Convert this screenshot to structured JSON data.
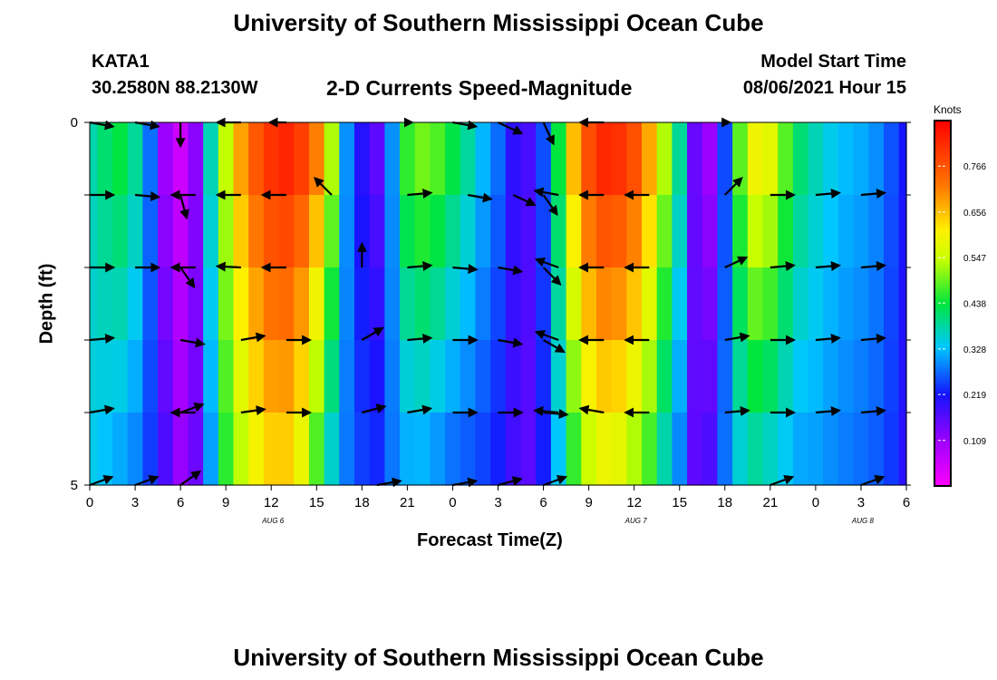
{
  "page": {
    "title": "University of Southern Mississippi Ocean Cube",
    "footer_title": "University of Southern Mississippi Ocean Cube"
  },
  "header": {
    "station": "KATA1",
    "coords": "30.2580N  88.2130W",
    "plot_title": "2-D Currents Speed-Magnitude",
    "model_label": "Model Start Time",
    "model_time": "08/06/2021 Hour 15"
  },
  "chart_data": {
    "type": "heatmap",
    "title": "2-D Currents Speed-Magnitude",
    "xlabel": "Forecast Time(Z)",
    "ylabel": "Depth (ft)",
    "x_tick_labels": [
      "0",
      "3",
      "6",
      "9",
      "12",
      "15",
      "18",
      "21",
      "0",
      "3",
      "6",
      "9",
      "12",
      "15",
      "18",
      "21",
      "0",
      "3",
      "6"
    ],
    "date_labels": [
      {
        "text": "AUG  6",
        "hour": 12
      },
      {
        "text": "AUG  7",
        "hour": 36
      },
      {
        "text": "AUG  8",
        "hour": 51
      }
    ],
    "y_tick_labels": [
      "0",
      "5"
    ],
    "ylim": [
      0,
      5
    ],
    "x_range_hours": [
      0,
      54
    ],
    "depth_levels": [
      0,
      1,
      2,
      3,
      4,
      5
    ],
    "colorbar": {
      "unit": "Knots",
      "range": [
        0.0,
        0.875
      ],
      "tick_labels": [
        "0.766",
        "0.656",
        "0.547",
        "0.438",
        "0.328",
        "0.219",
        "0.109"
      ],
      "tick_values": [
        0.766,
        0.656,
        0.547,
        0.438,
        0.328,
        0.219,
        0.109
      ]
    },
    "speed_profile": {
      "hours": [
        0,
        1,
        2,
        3,
        4,
        5,
        6,
        7,
        8,
        9,
        10,
        11,
        12,
        13,
        14,
        15,
        16,
        17,
        18,
        19,
        20,
        21,
        22,
        23,
        24,
        25,
        26,
        27,
        28,
        29,
        30,
        31,
        32,
        33,
        34,
        35,
        36,
        37,
        38,
        39,
        40,
        41,
        42,
        43,
        44,
        45,
        46,
        47,
        48,
        49,
        50,
        51,
        52,
        53,
        54
      ],
      "surface": [
        0.38,
        0.42,
        0.45,
        0.4,
        0.28,
        0.1,
        0.05,
        0.12,
        0.38,
        0.55,
        0.7,
        0.78,
        0.83,
        0.85,
        0.82,
        0.74,
        0.55,
        0.3,
        0.2,
        0.15,
        0.3,
        0.48,
        0.52,
        0.5,
        0.45,
        0.4,
        0.33,
        0.28,
        0.2,
        0.18,
        0.26,
        0.45,
        0.68,
        0.8,
        0.85,
        0.84,
        0.8,
        0.7,
        0.55,
        0.4,
        0.15,
        0.1,
        0.25,
        0.5,
        0.62,
        0.6,
        0.5,
        0.42,
        0.38,
        0.35,
        0.33,
        0.32,
        0.3,
        0.26,
        0.22
      ],
      "bottom": [
        0.34,
        0.32,
        0.3,
        0.28,
        0.24,
        0.18,
        0.12,
        0.15,
        0.3,
        0.45,
        0.52,
        0.58,
        0.62,
        0.62,
        0.56,
        0.45,
        0.34,
        0.28,
        0.25,
        0.24,
        0.28,
        0.3,
        0.3,
        0.28,
        0.26,
        0.25,
        0.24,
        0.22,
        0.18,
        0.16,
        0.22,
        0.32,
        0.44,
        0.52,
        0.56,
        0.55,
        0.5,
        0.45,
        0.36,
        0.28,
        0.16,
        0.18,
        0.28,
        0.34,
        0.36,
        0.34,
        0.32,
        0.3,
        0.3,
        0.29,
        0.28,
        0.27,
        0.26,
        0.24,
        0.2
      ]
    },
    "vectors": [
      {
        "hour": 0,
        "depth": 0,
        "dir": -10,
        "len": 1.0
      },
      {
        "hour": 3,
        "depth": 0,
        "dir": -10,
        "len": 1.0
      },
      {
        "hour": 6,
        "depth": 0,
        "dir": -90,
        "len": 1.0
      },
      {
        "hour": 10,
        "depth": 0,
        "dir": 180,
        "len": 1.0
      },
      {
        "hour": 13,
        "depth": 0,
        "dir": 180,
        "len": 0.7
      },
      {
        "hour": 21,
        "depth": 0,
        "dir": 0,
        "len": 0.2
      },
      {
        "hour": 24,
        "depth": 0,
        "dir": -10,
        "len": 1.0
      },
      {
        "hour": 27,
        "depth": 0,
        "dir": -25,
        "len": 1.1
      },
      {
        "hour": 30,
        "depth": 0,
        "dir": -65,
        "len": 1.0
      },
      {
        "hour": 34,
        "depth": 0,
        "dir": 180,
        "len": 1.0
      },
      {
        "hour": 42,
        "depth": 0,
        "dir": 0,
        "len": 0.2
      },
      {
        "hour": 0,
        "depth": 1,
        "dir": 0,
        "len": 1.0
      },
      {
        "hour": 3,
        "depth": 1,
        "dir": -5,
        "len": 1.0
      },
      {
        "hour": 6,
        "depth": 1,
        "dir": -75,
        "len": 1.0
      },
      {
        "hour": 7,
        "depth": 1,
        "dir": 180,
        "len": 1.0
      },
      {
        "hour": 10,
        "depth": 1,
        "dir": 180,
        "len": 1.0
      },
      {
        "hour": 13,
        "depth": 1,
        "dir": 180,
        "len": 1.0
      },
      {
        "hour": 16,
        "depth": 1,
        "dir": 135,
        "len": 1.0
      },
      {
        "hour": 21,
        "depth": 1,
        "dir": 5,
        "len": 1.0
      },
      {
        "hour": 25,
        "depth": 1,
        "dir": -10,
        "len": 1.0
      },
      {
        "hour": 28,
        "depth": 1,
        "dir": -25,
        "len": 1.0
      },
      {
        "hour": 30,
        "depth": 1,
        "dir": -55,
        "len": 1.0
      },
      {
        "hour": 31,
        "depth": 1,
        "dir": 170,
        "len": 1.0
      },
      {
        "hour": 34,
        "depth": 1,
        "dir": 180,
        "len": 1.0
      },
      {
        "hour": 37,
        "depth": 1,
        "dir": 180,
        "len": 1.0
      },
      {
        "hour": 42,
        "depth": 1,
        "dir": 45,
        "len": 1.0
      },
      {
        "hour": 45,
        "depth": 1,
        "dir": 0,
        "len": 1.0
      },
      {
        "hour": 48,
        "depth": 1,
        "dir": 5,
        "len": 1.0
      },
      {
        "hour": 51,
        "depth": 1,
        "dir": 5,
        "len": 1.0
      },
      {
        "hour": 0,
        "depth": 2,
        "dir": 0,
        "len": 1.0
      },
      {
        "hour": 3,
        "depth": 2,
        "dir": 0,
        "len": 1.0
      },
      {
        "hour": 6,
        "depth": 2,
        "dir": -55,
        "len": 1.0
      },
      {
        "hour": 7,
        "depth": 2,
        "dir": 180,
        "len": 1.0
      },
      {
        "hour": 10,
        "depth": 2,
        "dir": 177,
        "len": 1.0
      },
      {
        "hour": 13,
        "depth": 2,
        "dir": 180,
        "len": 1.0
      },
      {
        "hour": 18,
        "depth": 2,
        "dir": 90,
        "len": 1.0
      },
      {
        "hour": 21,
        "depth": 2,
        "dir": 5,
        "len": 1.0
      },
      {
        "hour": 24,
        "depth": 2,
        "dir": -5,
        "len": 1.0
      },
      {
        "hour": 27,
        "depth": 2,
        "dir": -10,
        "len": 1.0
      },
      {
        "hour": 30,
        "depth": 2,
        "dir": -45,
        "len": 1.0
      },
      {
        "hour": 31,
        "depth": 2,
        "dir": 160,
        "len": 1.0
      },
      {
        "hour": 34,
        "depth": 2,
        "dir": 180,
        "len": 1.0
      },
      {
        "hour": 37,
        "depth": 2,
        "dir": 180,
        "len": 1.0
      },
      {
        "hour": 42,
        "depth": 2,
        "dir": 25,
        "len": 1.0
      },
      {
        "hour": 45,
        "depth": 2,
        "dir": 5,
        "len": 1.0
      },
      {
        "hour": 48,
        "depth": 2,
        "dir": 5,
        "len": 1.0
      },
      {
        "hour": 51,
        "depth": 2,
        "dir": 5,
        "len": 1.0
      },
      {
        "hour": 0,
        "depth": 3,
        "dir": 5,
        "len": 1.0
      },
      {
        "hour": 6,
        "depth": 3,
        "dir": -10,
        "len": 1.0
      },
      {
        "hour": 10,
        "depth": 3,
        "dir": 10,
        "len": 1.0
      },
      {
        "hour": 13,
        "depth": 3,
        "dir": 0,
        "len": 1.0
      },
      {
        "hour": 18,
        "depth": 3,
        "dir": 30,
        "len": 1.0
      },
      {
        "hour": 21,
        "depth": 3,
        "dir": 5,
        "len": 1.0
      },
      {
        "hour": 24,
        "depth": 3,
        "dir": 0,
        "len": 1.0
      },
      {
        "hour": 27,
        "depth": 3,
        "dir": -10,
        "len": 1.0
      },
      {
        "hour": 30,
        "depth": 3,
        "dir": -30,
        "len": 1.0
      },
      {
        "hour": 31,
        "depth": 3,
        "dir": 160,
        "len": 1.0
      },
      {
        "hour": 34,
        "depth": 3,
        "dir": 180,
        "len": 1.0
      },
      {
        "hour": 37,
        "depth": 3,
        "dir": 180,
        "len": 1.0
      },
      {
        "hour": 42,
        "depth": 3,
        "dir": 10,
        "len": 1.0
      },
      {
        "hour": 45,
        "depth": 3,
        "dir": 0,
        "len": 1.0
      },
      {
        "hour": 48,
        "depth": 3,
        "dir": 5,
        "len": 1.0
      },
      {
        "hour": 51,
        "depth": 3,
        "dir": 5,
        "len": 1.0
      },
      {
        "hour": 0,
        "depth": 4,
        "dir": 10,
        "len": 1.0
      },
      {
        "hour": 6,
        "depth": 4,
        "dir": 20,
        "len": 1.0
      },
      {
        "hour": 7,
        "depth": 4,
        "dir": 180,
        "len": 1.0
      },
      {
        "hour": 10,
        "depth": 4,
        "dir": 8,
        "len": 1.0
      },
      {
        "hour": 13,
        "depth": 4,
        "dir": 0,
        "len": 1.0
      },
      {
        "hour": 18,
        "depth": 4,
        "dir": 15,
        "len": 1.0
      },
      {
        "hour": 21,
        "depth": 4,
        "dir": 10,
        "len": 1.0
      },
      {
        "hour": 24,
        "depth": 4,
        "dir": 0,
        "len": 1.0
      },
      {
        "hour": 27,
        "depth": 4,
        "dir": 0,
        "len": 1.0
      },
      {
        "hour": 30,
        "depth": 4,
        "dir": -5,
        "len": 1.0
      },
      {
        "hour": 31,
        "depth": 4,
        "dir": 175,
        "len": 1.0
      },
      {
        "hour": 34,
        "depth": 4,
        "dir": 170,
        "len": 1.0
      },
      {
        "hour": 37,
        "depth": 4,
        "dir": 180,
        "len": 1.0
      },
      {
        "hour": 42,
        "depth": 4,
        "dir": 5,
        "len": 1.0
      },
      {
        "hour": 45,
        "depth": 4,
        "dir": 0,
        "len": 1.0
      },
      {
        "hour": 48,
        "depth": 4,
        "dir": 5,
        "len": 1.0
      },
      {
        "hour": 51,
        "depth": 4,
        "dir": 5,
        "len": 1.0
      },
      {
        "hour": 0,
        "depth": 5,
        "dir": 20,
        "len": 1.0
      },
      {
        "hour": 3,
        "depth": 5,
        "dir": 20,
        "len": 1.0
      },
      {
        "hour": 6,
        "depth": 5,
        "dir": 35,
        "len": 1.0
      },
      {
        "hour": 19,
        "depth": 5,
        "dir": 10,
        "len": 1.0
      },
      {
        "hour": 24,
        "depth": 5,
        "dir": 10,
        "len": 1.0
      },
      {
        "hour": 27,
        "depth": 5,
        "dir": 15,
        "len": 1.0
      },
      {
        "hour": 30,
        "depth": 5,
        "dir": 20,
        "len": 1.0
      },
      {
        "hour": 45,
        "depth": 5,
        "dir": 20,
        "len": 1.0
      },
      {
        "hour": 51,
        "depth": 5,
        "dir": 20,
        "len": 1.0
      }
    ]
  }
}
